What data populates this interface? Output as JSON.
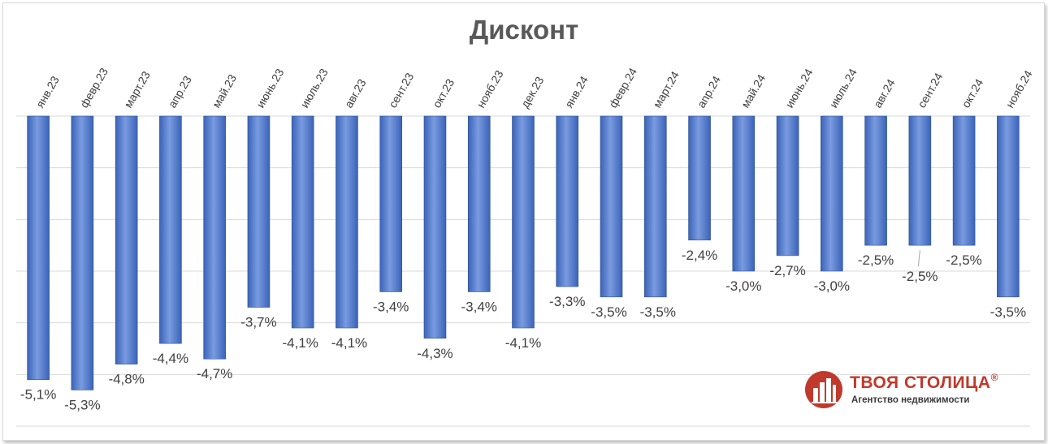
{
  "chart_data": {
    "type": "bar",
    "title": "Дисконт",
    "categories": [
      "янв.23",
      "февр.23",
      "март.23",
      "апр.23",
      "май.23",
      "июнь.23",
      "июль.23",
      "авг.23",
      "сент.23",
      "окт.23",
      "нояб.23",
      "дек.23",
      "янв.24",
      "февр.24",
      "март.24",
      "апр.24",
      "май.24",
      "июнь.24",
      "июль.24",
      "авг.24",
      "сент.24",
      "окт.24",
      "нояб.24"
    ],
    "values": [
      -5.1,
      -5.3,
      -4.8,
      -4.4,
      -4.7,
      -3.7,
      -4.1,
      -4.1,
      -3.4,
      -4.3,
      -3.4,
      -4.1,
      -3.3,
      -3.5,
      -3.5,
      -2.4,
      -3.0,
      -2.7,
      -3.0,
      -2.5,
      -2.5,
      -2.5,
      -3.5
    ],
    "value_labels": [
      "-5,1%",
      "-5,3%",
      "-4,8%",
      "-4,4%",
      "-4,7%",
      "-3,7%",
      "-4,1%",
      "-4,1%",
      "-3,4%",
      "-4,3%",
      "-3,4%",
      "-4,1%",
      "-3,3%",
      "-3,5%",
      "-3,5%",
      "-2,4%",
      "-3,0%",
      "-2,7%",
      "-3,0%",
      "-2,5%",
      "-2,5%",
      "-2,5%",
      "-3,5%"
    ],
    "xlabel": "",
    "ylabel": "",
    "ylim": [
      -6,
      0
    ],
    "grid": true,
    "legend": "none",
    "bar_color": "#4472c4",
    "bar_color_light": "#7a9be0",
    "grid_color": "#d9d9d9"
  },
  "logo": {
    "name": "ТВОЯ СТОЛИЦА",
    "registered": "®",
    "subtitle": "Агентство недвижимости",
    "color": "#c0392b"
  }
}
